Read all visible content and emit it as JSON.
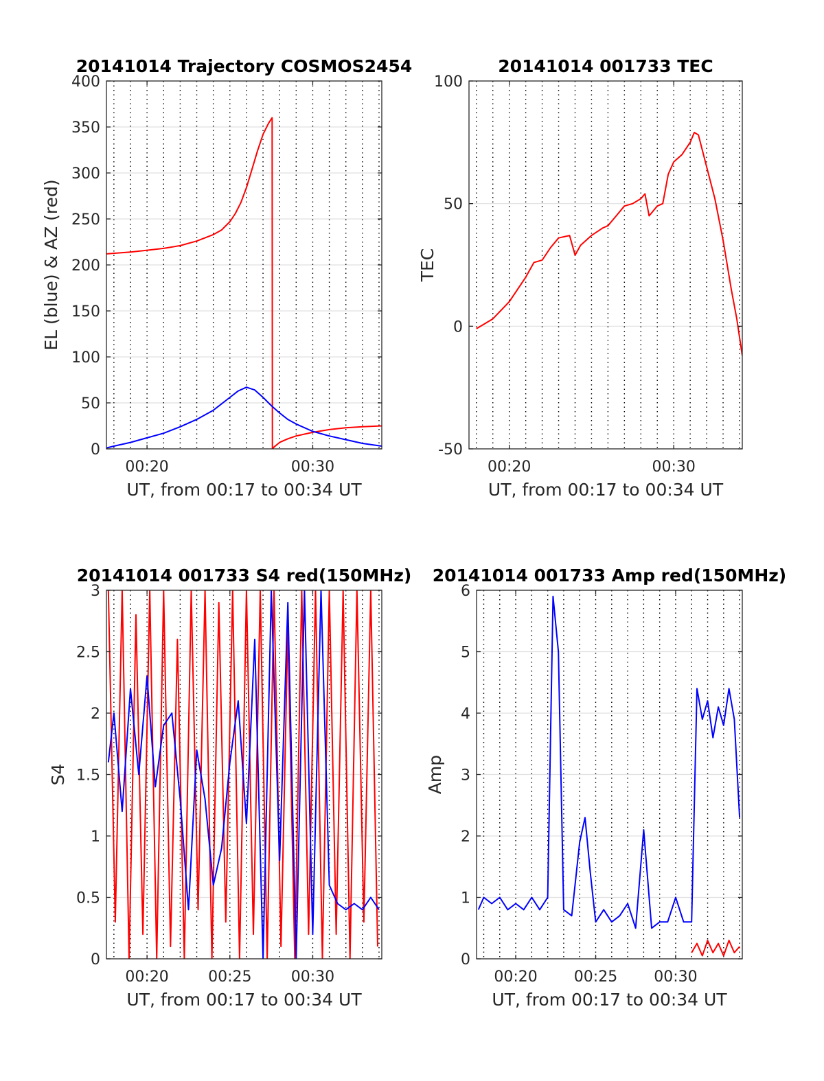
{
  "chart_data": [
    {
      "type": "line",
      "title": "20141014 Trajectory COSMOS2454",
      "xlabel": "UT, from 00:17 to 00:34 UT",
      "ylabel": "EL (blue) & AZ (red)",
      "xlim": [
        "00:17:33",
        "00:34:10"
      ],
      "ylim": [
        0,
        400
      ],
      "x_ticks": [
        "00:20",
        "00:30"
      ],
      "y_ticks": [
        "0",
        "50",
        "100",
        "150",
        "200",
        "250",
        "300",
        "350",
        "400"
      ],
      "grid": "dotted vertical every minute; light horizontal at y ticks",
      "series": [
        {
          "color": "#ff0000",
          "x": [
            "00:17:33",
            "00:19:00",
            "00:20:00",
            "00:21:00",
            "00:22:00",
            "00:23:00",
            "00:24:00",
            "00:24:30",
            "00:25:00",
            "00:25:20",
            "00:25:40",
            "00:26:00",
            "00:26:20",
            "00:26:40",
            "00:27:00",
            "00:27:20",
            "00:27:33",
            "00:27:34",
            "00:27:40",
            "00:28:00",
            "00:28:30",
            "00:29:00",
            "00:30:00",
            "00:31:00",
            "00:32:00",
            "00:33:00",
            "00:34:10"
          ],
          "values": [
            212,
            214,
            216,
            218,
            221,
            226,
            233,
            238,
            247,
            256,
            268,
            284,
            304,
            324,
            342,
            354,
            360,
            0,
            2,
            7,
            11,
            14,
            18,
            21,
            23,
            24,
            25
          ]
        },
        {
          "color": "#0000ff",
          "x": [
            "00:17:33",
            "00:18:00",
            "00:19:00",
            "00:20:00",
            "00:21:00",
            "00:22:00",
            "00:23:00",
            "00:24:00",
            "00:25:00",
            "00:25:30",
            "00:26:00",
            "00:26:30",
            "00:27:00",
            "00:27:30",
            "00:28:00",
            "00:28:30",
            "00:29:00",
            "00:30:00",
            "00:31:00",
            "00:32:00",
            "00:33:00",
            "00:34:10"
          ],
          "values": [
            1,
            3,
            7,
            12,
            17,
            24,
            32,
            42,
            56,
            63,
            67,
            64,
            56,
            47,
            39,
            32,
            27,
            19,
            14,
            10,
            6,
            3
          ]
        }
      ]
    },
    {
      "type": "line",
      "title": "20141014 001733 TEC",
      "xlabel": "UT, from 00:17 to 00:34 UT",
      "ylabel": "TEC",
      "xlim": [
        "00:17:33",
        "00:34:10"
      ],
      "ylim": [
        -50,
        100
      ],
      "x_ticks": [
        "00:20",
        "00:30"
      ],
      "y_ticks": [
        "-50",
        "0",
        "50",
        "100"
      ],
      "grid": "dotted vertical every minute; light horizontal at y ticks",
      "series": [
        {
          "color": "#ff0000",
          "x": [
            "00:18:00",
            "00:19:00",
            "00:20:00",
            "00:21:00",
            "00:21:30",
            "00:22:00",
            "00:22:30",
            "00:23:00",
            "00:23:40",
            "00:24:00",
            "00:24:20",
            "00:25:00",
            "00:25:40",
            "00:26:00",
            "00:26:30",
            "00:27:00",
            "00:27:30",
            "00:28:00",
            "00:28:15",
            "00:28:30",
            "00:29:00",
            "00:29:20",
            "00:29:40",
            "00:30:00",
            "00:30:30",
            "00:31:00",
            "00:31:15",
            "00:31:30",
            "00:32:00",
            "00:32:30",
            "00:33:00",
            "00:33:30",
            "00:33:50",
            "00:34:10"
          ],
          "values": [
            -1,
            3,
            10,
            20,
            26,
            27,
            32,
            36,
            37,
            29,
            33,
            37,
            40,
            41,
            45,
            49,
            50,
            52,
            54,
            45,
            49,
            50,
            62,
            67,
            70,
            75,
            79,
            78,
            65,
            52,
            35,
            15,
            3,
            -12
          ]
        }
      ]
    },
    {
      "type": "line",
      "title": "20141014 001733 S4 red(150MHz)",
      "xlabel": "UT, from 00:17 to 00:34 UT",
      "ylabel": "S4",
      "xlim": [
        "00:17:33",
        "00:34:10"
      ],
      "ylim": [
        0,
        3
      ],
      "x_ticks": [
        "00:20",
        "00:25",
        "00:30"
      ],
      "y_ticks": [
        "0",
        "0.5",
        "1",
        "1.5",
        "2",
        "2.5",
        "3"
      ],
      "grid": "dotted vertical every minute; light horizontal at y ticks",
      "series": [
        {
          "color": "#ff0000",
          "x": [
            "00:17:40",
            "00:18:05",
            "00:18:30",
            "00:18:55",
            "00:19:20",
            "00:19:45",
            "00:20:10",
            "00:20:35",
            "00:21:00",
            "00:21:25",
            "00:21:50",
            "00:22:15",
            "00:22:40",
            "00:23:05",
            "00:23:30",
            "00:23:55",
            "00:24:20",
            "00:24:45",
            "00:25:10",
            "00:25:35",
            "00:26:00",
            "00:26:25",
            "00:26:50",
            "00:27:15",
            "00:27:40",
            "00:28:05",
            "00:28:30",
            "00:28:55",
            "00:29:20",
            "00:29:45",
            "00:30:10",
            "00:30:35",
            "00:31:00",
            "00:31:25",
            "00:31:50",
            "00:32:15",
            "00:32:40",
            "00:33:05",
            "00:33:30",
            "00:33:55"
          ],
          "values": [
            3,
            0.3,
            3,
            0,
            2.8,
            0.2,
            3,
            0,
            3,
            0.1,
            2.6,
            0,
            3,
            0.4,
            3,
            0,
            2.9,
            0.3,
            3,
            0,
            3,
            0.2,
            3,
            0,
            3,
            0.1,
            2.7,
            0,
            3,
            0.2,
            3,
            0,
            3,
            0.2,
            3,
            0,
            3,
            0.3,
            3,
            0.1
          ]
        },
        {
          "color": "#0000ff",
          "x": [
            "00:17:40",
            "00:18:00",
            "00:18:30",
            "00:19:00",
            "00:19:30",
            "00:20:00",
            "00:20:30",
            "00:21:00",
            "00:21:30",
            "00:22:00",
            "00:22:30",
            "00:23:00",
            "00:23:30",
            "00:24:00",
            "00:24:30",
            "00:25:00",
            "00:25:30",
            "00:26:00",
            "00:26:30",
            "00:27:00",
            "00:27:30",
            "00:28:00",
            "00:28:30",
            "00:29:00",
            "00:29:30",
            "00:30:00",
            "00:30:30",
            "00:31:00",
            "00:31:30",
            "00:32:00",
            "00:32:30",
            "00:33:00",
            "00:33:30",
            "00:34:00"
          ],
          "values": [
            1.6,
            2.0,
            1.2,
            2.2,
            1.5,
            2.3,
            1.4,
            1.9,
            2.0,
            1.3,
            0.4,
            1.7,
            1.3,
            0.6,
            0.9,
            1.6,
            2.1,
            1.1,
            2.6,
            0,
            3,
            0.8,
            2.9,
            0,
            3,
            0.2,
            3,
            0.6,
            0.45,
            0.4,
            0.45,
            0.4,
            0.5,
            0.4
          ]
        }
      ]
    },
    {
      "type": "line",
      "title": "20141014 001733 Amp red(150MHz)",
      "xlabel": "UT, from 00:17 to 00:34 UT",
      "ylabel": "Amp",
      "xlim": [
        "00:17:33",
        "00:34:10"
      ],
      "ylim": [
        0,
        6
      ],
      "x_ticks": [
        "00:20",
        "00:25",
        "00:30"
      ],
      "y_ticks": [
        "0",
        "1",
        "2",
        "3",
        "4",
        "5",
        "6"
      ],
      "grid": "dotted vertical every minute; light horizontal at y ticks",
      "series": [
        {
          "color": "#ff0000",
          "x": [
            "00:31:00",
            "00:31:20",
            "00:31:40",
            "00:32:00",
            "00:32:20",
            "00:32:40",
            "00:33:00",
            "00:33:20",
            "00:33:40",
            "00:34:00"
          ],
          "values": [
            0.1,
            0.25,
            0.05,
            0.3,
            0.1,
            0.25,
            0.05,
            0.3,
            0.1,
            0.2
          ]
        },
        {
          "color": "#0000ff",
          "x": [
            "00:17:40",
            "00:18:00",
            "00:18:30",
            "00:19:00",
            "00:19:30",
            "00:20:00",
            "00:20:30",
            "00:21:00",
            "00:21:30",
            "00:22:00",
            "00:22:20",
            "00:22:40",
            "00:23:00",
            "00:23:30",
            "00:24:00",
            "00:24:20",
            "00:24:40",
            "00:25:00",
            "00:25:30",
            "00:26:00",
            "00:26:30",
            "00:27:00",
            "00:27:30",
            "00:28:00",
            "00:28:30",
            "00:29:00",
            "00:29:30",
            "00:30:00",
            "00:30:30",
            "00:31:00",
            "00:31:20",
            "00:31:40",
            "00:32:00",
            "00:32:20",
            "00:32:40",
            "00:33:00",
            "00:33:20",
            "00:33:40",
            "00:34:00"
          ],
          "values": [
            0.8,
            1.0,
            0.9,
            1.0,
            0.8,
            0.9,
            0.8,
            1.0,
            0.8,
            1.0,
            5.9,
            5.0,
            0.8,
            0.7,
            1.9,
            2.3,
            1.4,
            0.6,
            0.8,
            0.6,
            0.7,
            0.9,
            0.5,
            2.1,
            0.5,
            0.6,
            0.6,
            1.0,
            0.6,
            0.6,
            4.4,
            3.9,
            4.2,
            3.6,
            4.1,
            3.8,
            4.4,
            3.9,
            2.3
          ]
        }
      ]
    }
  ]
}
